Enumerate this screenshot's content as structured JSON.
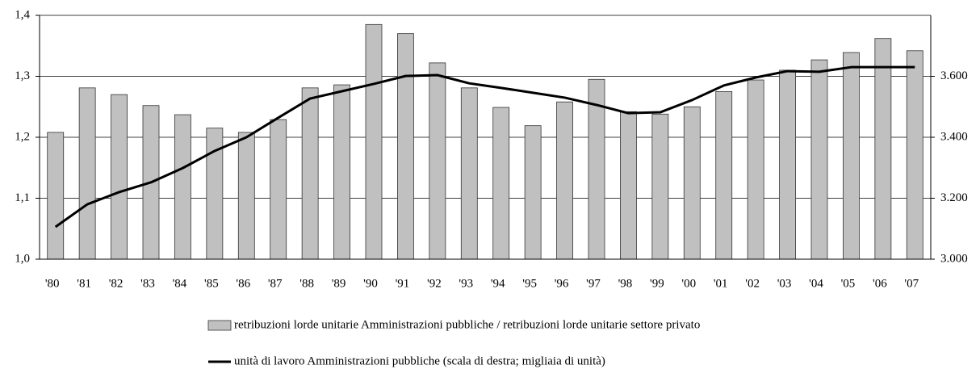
{
  "chart_data": {
    "type": "bar",
    "categories": [
      "'80",
      "'81",
      "'82",
      "'83",
      "'84",
      "'85",
      "'86",
      "'87",
      "'88",
      "'89",
      "'90",
      "'91",
      "'92",
      "'93",
      "'94",
      "'95",
      "'96",
      "'97",
      "'98",
      "'99",
      "'00",
      "'01",
      "'02",
      "'03",
      "'04",
      "'05",
      "'06",
      "'07"
    ],
    "series": [
      {
        "name": "retribuzioni lorde unitarie Amministrazioni pubbliche / retribuzioni lorde unitarie settore privato",
        "type": "bar",
        "color": "#c0c0c0",
        "values": [
          1.208,
          1.281,
          1.27,
          1.252,
          1.237,
          1.215,
          1.208,
          1.229,
          1.281,
          1.286,
          1.385,
          1.37,
          1.322,
          1.281,
          1.249,
          1.219,
          1.258,
          1.295,
          1.242,
          1.238,
          1.25,
          1.275,
          1.294,
          1.31,
          1.327,
          1.339,
          1.362,
          1.342
        ]
      },
      {
        "name": "unità di lavoro Amministrazioni pubbliche (scala di destra; migliaia di unità)",
        "type": "line",
        "axis": "y2",
        "color": "#000000",
        "values": [
          3106,
          3180,
          3220,
          3252,
          3299,
          3355,
          3400,
          3464,
          3527,
          3551,
          3575,
          3601,
          3604,
          3577,
          3562,
          3546,
          3530,
          3506,
          3479,
          3482,
          3522,
          3570,
          3596,
          3617,
          3615,
          3630,
          3630,
          3630
        ]
      }
    ],
    "ylim": [
      1.0,
      1.4
    ],
    "yticks": [
      {
        "value": 1.0,
        "label": "1,0"
      },
      {
        "value": 1.1,
        "label": "1,1"
      },
      {
        "value": 1.2,
        "label": "1,2"
      },
      {
        "value": 1.3,
        "label": "1,3"
      },
      {
        "value": 1.4,
        "label": "1,4"
      }
    ],
    "y2lim": [
      3000,
      3800
    ],
    "y2ticks": [
      {
        "value": 3000,
        "label": "3.000"
      },
      {
        "value": 3200,
        "label": "3.200"
      },
      {
        "value": 3400,
        "label": "3.400"
      },
      {
        "value": 3600,
        "label": "3.600"
      }
    ],
    "grid": true
  }
}
